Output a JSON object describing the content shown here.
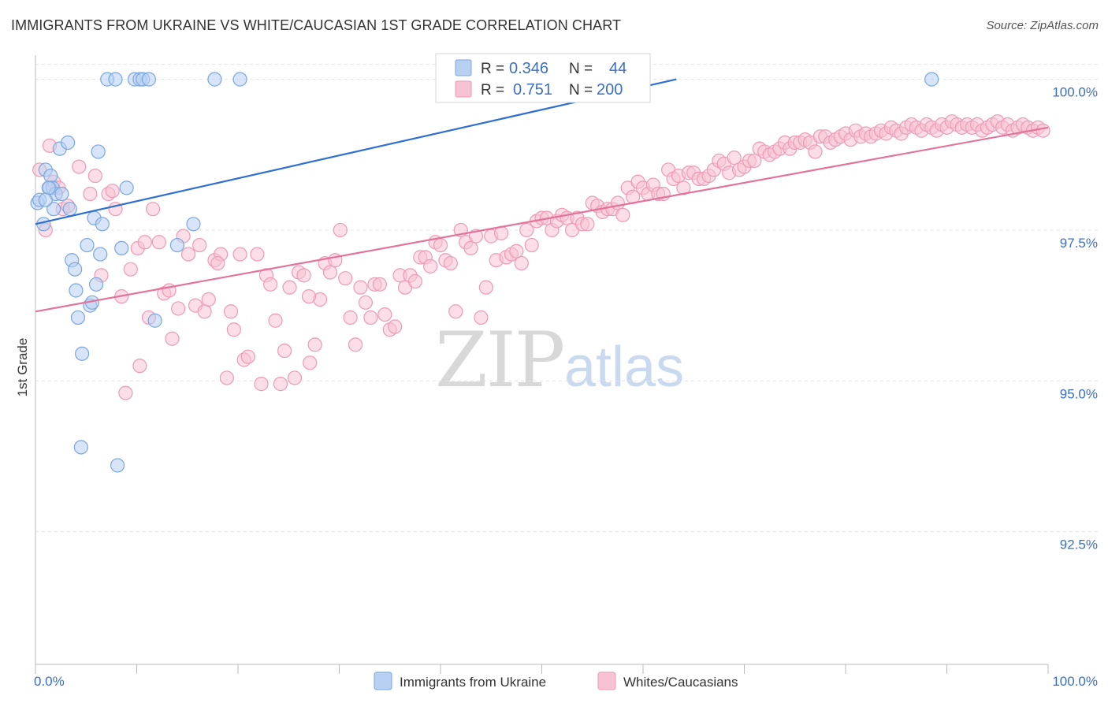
{
  "header": {
    "title": "IMMIGRANTS FROM UKRAINE VS WHITE/CAUCASIAN 1ST GRADE CORRELATION CHART",
    "source": "Source: ZipAtlas.com"
  },
  "watermark": {
    "zip": "ZIP",
    "atlas": "atlas"
  },
  "legend_box": {
    "r_label": "R =",
    "n_label": "N =",
    "blue": {
      "r": "0.346",
      "n": "44"
    },
    "pink": {
      "r": "0.751",
      "n": "200"
    }
  },
  "bottom_legend": {
    "blue_label": "Immigrants from Ukraine",
    "pink_label": "Whites/Caucasians"
  },
  "colors": {
    "blue_fill": "#b8d0f2",
    "blue_stroke": "#7aa6e0",
    "blue_line": "#2f6fcf",
    "pink_fill": "#f7c3d4",
    "pink_stroke": "#ee9ab6",
    "pink_line": "#e2749c",
    "tick_label": "#3b6fc4"
  },
  "chart_data": {
    "type": "scatter",
    "title": "IMMIGRANTS FROM UKRAINE VS WHITE/CAUCASIAN 1ST GRADE CORRELATION CHART",
    "xlabel": "",
    "ylabel": "1st Grade",
    "xlim": [
      0,
      100
    ],
    "ylim": [
      90.3,
      100.4
    ],
    "x_tick_labels": [
      "0.0%",
      "100.0%"
    ],
    "y_ticks": [
      92.5,
      95.0,
      97.5,
      100.0
    ],
    "y_tick_labels": [
      "92.5%",
      "95.0%",
      "97.5%",
      "100.0%"
    ],
    "grid": true,
    "series": [
      {
        "name": "Immigrants from Ukraine",
        "R": 0.346,
        "N": 44,
        "trend": [
          [
            0,
            97.6
          ],
          [
            63.3,
            100.0
          ]
        ],
        "points": [
          [
            0.2,
            97.95
          ],
          [
            0.4,
            98.0
          ],
          [
            0.8,
            97.6
          ],
          [
            1.0,
            98.5
          ],
          [
            1.4,
            98.2
          ],
          [
            1.5,
            98.4
          ],
          [
            1.7,
            98.2
          ],
          [
            1.8,
            97.85
          ],
          [
            2.0,
            98.1
          ],
          [
            2.4,
            98.85
          ],
          [
            2.6,
            98.1
          ],
          [
            3.2,
            98.95
          ],
          [
            3.4,
            97.85
          ],
          [
            3.6,
            97.0
          ],
          [
            3.9,
            96.85
          ],
          [
            4.2,
            96.05
          ],
          [
            4.6,
            95.45
          ],
          [
            4.5,
            93.9
          ],
          [
            5.1,
            97.25
          ],
          [
            5.4,
            96.25
          ],
          [
            5.6,
            96.3
          ],
          [
            5.8,
            97.7
          ],
          [
            6.0,
            96.6
          ],
          [
            6.2,
            98.8
          ],
          [
            6.4,
            97.1
          ],
          [
            6.6,
            97.6
          ],
          [
            7.1,
            100.0
          ],
          [
            7.9,
            100.0
          ],
          [
            8.1,
            93.6
          ],
          [
            8.5,
            97.2
          ],
          [
            9.0,
            98.2
          ],
          [
            9.8,
            100.0
          ],
          [
            10.3,
            100.0
          ],
          [
            10.6,
            100.0
          ],
          [
            11.2,
            100.0
          ],
          [
            11.8,
            96.0
          ],
          [
            14.0,
            97.25
          ],
          [
            17.7,
            100.0
          ],
          [
            15.6,
            97.6
          ],
          [
            20.2,
            100.0
          ],
          [
            1.3,
            98.2
          ],
          [
            1.0,
            98.0
          ],
          [
            4.0,
            96.5
          ],
          [
            88.5,
            100.0
          ]
        ]
      },
      {
        "name": "Whites/Caucasians",
        "R": 0.751,
        "N": 200,
        "trend": [
          [
            0,
            96.15
          ],
          [
            100,
            99.2
          ]
        ],
        "points": [
          [
            0.4,
            98.5
          ],
          [
            1.0,
            97.5
          ],
          [
            1.4,
            98.9
          ],
          [
            1.8,
            98.3
          ],
          [
            2.3,
            98.2
          ],
          [
            2.7,
            97.85
          ],
          [
            3.2,
            97.9
          ],
          [
            4.3,
            98.55
          ],
          [
            5.4,
            98.1
          ],
          [
            5.9,
            98.4
          ],
          [
            6.5,
            96.75
          ],
          [
            7.2,
            98.1
          ],
          [
            7.6,
            98.15
          ],
          [
            7.9,
            97.85
          ],
          [
            8.5,
            96.4
          ],
          [
            8.9,
            94.8
          ],
          [
            9.4,
            96.85
          ],
          [
            10.1,
            97.2
          ],
          [
            10.3,
            95.25
          ],
          [
            10.8,
            97.3
          ],
          [
            11.2,
            96.05
          ],
          [
            11.6,
            97.85
          ],
          [
            12.2,
            97.3
          ],
          [
            12.7,
            96.45
          ],
          [
            13.2,
            96.5
          ],
          [
            13.5,
            95.7
          ],
          [
            14.1,
            96.2
          ],
          [
            14.6,
            97.4
          ],
          [
            15.1,
            97.1
          ],
          [
            15.8,
            96.25
          ],
          [
            16.2,
            97.25
          ],
          [
            16.7,
            96.15
          ],
          [
            17.1,
            96.35
          ],
          [
            17.7,
            97.0
          ],
          [
            18.3,
            97.1
          ],
          [
            18.9,
            95.05
          ],
          [
            19.3,
            96.15
          ],
          [
            19.6,
            95.85
          ],
          [
            20.2,
            97.1
          ],
          [
            20.6,
            95.35
          ],
          [
            21.0,
            95.4
          ],
          [
            21.9,
            97.1
          ],
          [
            22.3,
            94.95
          ],
          [
            22.8,
            96.75
          ],
          [
            23.2,
            96.6
          ],
          [
            23.7,
            96.0
          ],
          [
            24.2,
            94.95
          ],
          [
            24.6,
            95.5
          ],
          [
            25.1,
            96.55
          ],
          [
            25.6,
            95.05
          ],
          [
            26.0,
            96.8
          ],
          [
            26.5,
            96.75
          ],
          [
            27.1,
            95.3
          ],
          [
            27.6,
            95.6
          ],
          [
            28.1,
            96.35
          ],
          [
            28.6,
            96.95
          ],
          [
            29.1,
            96.8
          ],
          [
            29.6,
            97.0
          ],
          [
            30.1,
            97.5
          ],
          [
            30.6,
            96.7
          ],
          [
            31.1,
            96.05
          ],
          [
            31.6,
            95.6
          ],
          [
            32.1,
            96.55
          ],
          [
            32.6,
            96.3
          ],
          [
            33.1,
            96.05
          ],
          [
            33.5,
            96.6
          ],
          [
            34.0,
            96.6
          ],
          [
            34.5,
            96.1
          ],
          [
            35.0,
            95.85
          ],
          [
            35.5,
            95.9
          ],
          [
            36.0,
            96.75
          ],
          [
            36.5,
            96.55
          ],
          [
            37.0,
            96.75
          ],
          [
            37.5,
            96.65
          ],
          [
            38.0,
            97.05
          ],
          [
            38.5,
            97.05
          ],
          [
            39.0,
            96.9
          ],
          [
            39.5,
            97.3
          ],
          [
            40.0,
            97.25
          ],
          [
            40.5,
            97.0
          ],
          [
            41.0,
            96.95
          ],
          [
            41.5,
            96.15
          ],
          [
            42.0,
            97.5
          ],
          [
            42.5,
            97.3
          ],
          [
            43.0,
            97.2
          ],
          [
            43.5,
            97.4
          ],
          [
            44.0,
            96.05
          ],
          [
            44.5,
            96.55
          ],
          [
            45.0,
            97.4
          ],
          [
            45.5,
            97.0
          ],
          [
            46.0,
            97.45
          ],
          [
            46.5,
            97.05
          ],
          [
            47.0,
            97.1
          ],
          [
            47.5,
            97.15
          ],
          [
            48.0,
            96.95
          ],
          [
            48.5,
            97.5
          ],
          [
            49.0,
            97.25
          ],
          [
            49.5,
            97.65
          ],
          [
            50.0,
            97.7
          ],
          [
            50.5,
            97.7
          ],
          [
            51.0,
            97.5
          ],
          [
            51.5,
            97.65
          ],
          [
            52.0,
            97.75
          ],
          [
            52.5,
            97.7
          ],
          [
            53.0,
            97.5
          ],
          [
            53.5,
            97.7
          ],
          [
            54.0,
            97.6
          ],
          [
            54.5,
            97.6
          ],
          [
            55.0,
            97.95
          ],
          [
            55.5,
            97.9
          ],
          [
            56.0,
            97.8
          ],
          [
            56.5,
            97.85
          ],
          [
            57.0,
            97.85
          ],
          [
            57.5,
            97.95
          ],
          [
            58.0,
            97.75
          ],
          [
            58.5,
            98.2
          ],
          [
            59.0,
            98.05
          ],
          [
            59.5,
            98.3
          ],
          [
            60.0,
            98.2
          ],
          [
            60.5,
            98.1
          ],
          [
            61.0,
            98.25
          ],
          [
            61.5,
            98.1
          ],
          [
            62.0,
            98.1
          ],
          [
            62.5,
            98.5
          ],
          [
            63.0,
            98.35
          ],
          [
            63.5,
            98.4
          ],
          [
            64.0,
            98.2
          ],
          [
            64.5,
            98.45
          ],
          [
            65.0,
            98.45
          ],
          [
            65.5,
            98.35
          ],
          [
            66.0,
            98.35
          ],
          [
            66.5,
            98.4
          ],
          [
            67.0,
            98.5
          ],
          [
            67.5,
            98.65
          ],
          [
            68.0,
            98.6
          ],
          [
            68.5,
            98.45
          ],
          [
            69.0,
            98.7
          ],
          [
            69.5,
            98.5
          ],
          [
            70.0,
            98.55
          ],
          [
            70.5,
            98.65
          ],
          [
            71.0,
            98.65
          ],
          [
            71.5,
            98.85
          ],
          [
            72.0,
            98.8
          ],
          [
            72.5,
            98.75
          ],
          [
            73.0,
            98.8
          ],
          [
            73.5,
            98.85
          ],
          [
            74.0,
            98.95
          ],
          [
            74.5,
            98.85
          ],
          [
            75.0,
            98.95
          ],
          [
            75.5,
            98.95
          ],
          [
            76.0,
            99.0
          ],
          [
            76.5,
            98.95
          ],
          [
            77.0,
            98.8
          ],
          [
            77.5,
            99.05
          ],
          [
            78.0,
            99.05
          ],
          [
            78.5,
            98.95
          ],
          [
            79.0,
            99.0
          ],
          [
            79.5,
            99.05
          ],
          [
            80.0,
            99.1
          ],
          [
            80.5,
            99.0
          ],
          [
            81.0,
            99.15
          ],
          [
            81.5,
            99.05
          ],
          [
            82.0,
            99.1
          ],
          [
            82.5,
            99.05
          ],
          [
            83.0,
            99.1
          ],
          [
            83.5,
            99.15
          ],
          [
            84.0,
            99.1
          ],
          [
            84.5,
            99.2
          ],
          [
            85.0,
            99.15
          ],
          [
            85.5,
            99.1
          ],
          [
            86.0,
            99.2
          ],
          [
            86.5,
            99.25
          ],
          [
            87.0,
            99.2
          ],
          [
            87.5,
            99.15
          ],
          [
            88.0,
            99.25
          ],
          [
            88.5,
            99.2
          ],
          [
            89.0,
            99.15
          ],
          [
            89.5,
            99.25
          ],
          [
            90.0,
            99.2
          ],
          [
            90.5,
            99.3
          ],
          [
            91.0,
            99.25
          ],
          [
            91.5,
            99.2
          ],
          [
            92.0,
            99.25
          ],
          [
            92.5,
            99.2
          ],
          [
            93.0,
            99.25
          ],
          [
            93.5,
            99.15
          ],
          [
            94.0,
            99.2
          ],
          [
            94.5,
            99.25
          ],
          [
            95.0,
            99.3
          ],
          [
            95.5,
            99.2
          ],
          [
            96.0,
            99.25
          ],
          [
            96.5,
            99.15
          ],
          [
            97.0,
            99.2
          ],
          [
            97.5,
            99.25
          ],
          [
            98.0,
            99.2
          ],
          [
            98.5,
            99.15
          ],
          [
            99.0,
            99.2
          ],
          [
            99.5,
            99.15
          ],
          [
            27.0,
            96.4
          ],
          [
            18.0,
            96.95
          ]
        ]
      }
    ]
  }
}
